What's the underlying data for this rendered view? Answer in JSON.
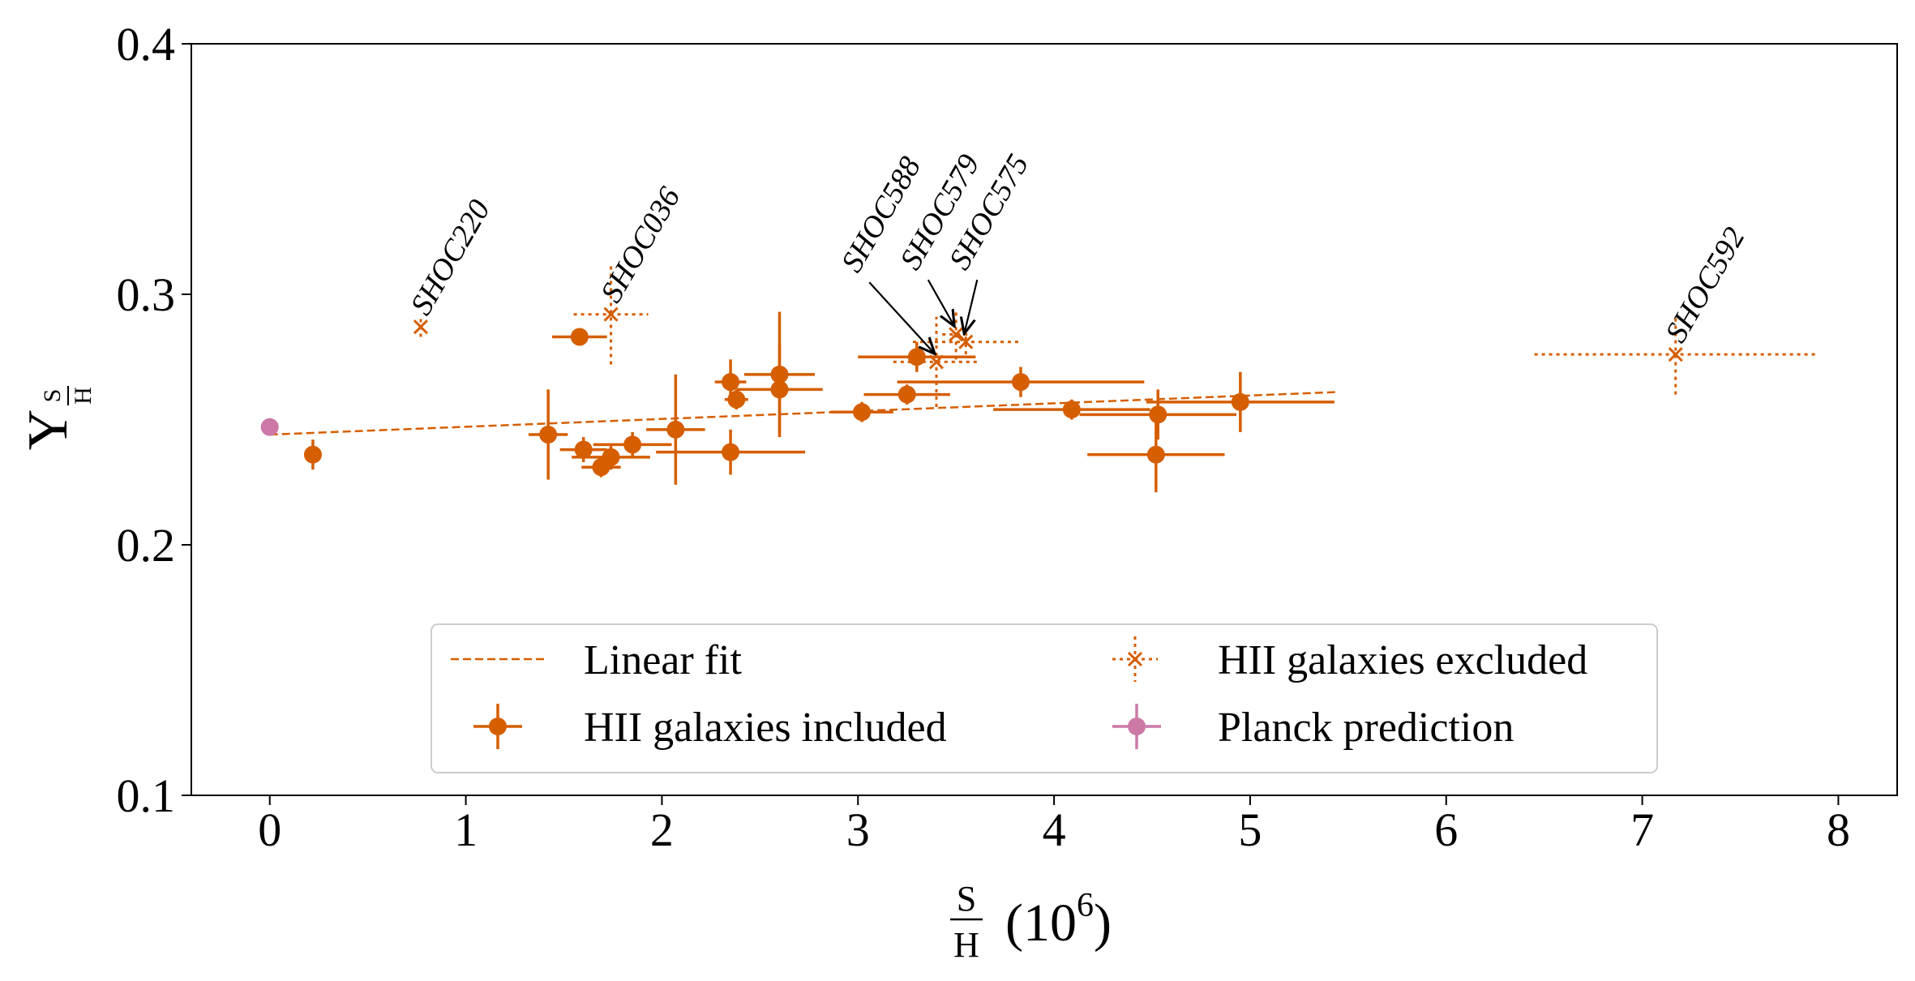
{
  "chart_data": {
    "type": "scatter",
    "title": "",
    "xlabel": {
      "main": "S",
      "sub": "H",
      "suffix": "(10",
      "exp": "6",
      "close": ")"
    },
    "ylabel": {
      "main": "Y",
      "sub_num": "S",
      "sub_den": "H"
    },
    "xlim": [
      -0.4,
      8.3
    ],
    "ylim": [
      0.1,
      0.4
    ],
    "xticks": [
      0,
      1,
      2,
      3,
      4,
      5,
      6,
      7,
      8
    ],
    "xtick_labels": [
      "0",
      "1",
      "2",
      "3",
      "4",
      "5",
      "6",
      "7",
      "8"
    ],
    "yticks": [
      0.1,
      0.2,
      0.3,
      0.4
    ],
    "ytick_labels": [
      "0.1",
      "0.2",
      "0.3",
      "0.4"
    ],
    "grid": false,
    "colors": {
      "orange": "#D55E00",
      "pink": "#CC79A7"
    },
    "linear_fit": {
      "name": "Linear fit",
      "x": [
        0.0,
        5.45
      ],
      "y": [
        0.244,
        0.261
      ]
    },
    "series": [
      {
        "name": "HII galaxies included",
        "marker": "circle",
        "points": [
          {
            "x": 0.22,
            "y": 0.236,
            "xerr": 0.0,
            "yerr": 0.006
          },
          {
            "x": 1.42,
            "y": 0.244,
            "xerr": 0.1,
            "yerr": 0.018
          },
          {
            "x": 1.58,
            "y": 0.283,
            "xerr": 0.14,
            "yerr": 0.0
          },
          {
            "x": 1.6,
            "y": 0.238,
            "xerr": 0.12,
            "yerr": 0.005
          },
          {
            "x": 1.69,
            "y": 0.231,
            "xerr": 0.1,
            "yerr": 0.004
          },
          {
            "x": 1.74,
            "y": 0.235,
            "xerr": 0.2,
            "yerr": 0.005
          },
          {
            "x": 1.85,
            "y": 0.24,
            "xerr": 0.2,
            "yerr": 0.005
          },
          {
            "x": 2.07,
            "y": 0.246,
            "xerr": 0.15,
            "yerr": 0.022
          },
          {
            "x": 2.35,
            "y": 0.237,
            "xerr": 0.38,
            "yerr": 0.009
          },
          {
            "x": 2.35,
            "y": 0.265,
            "xerr": 0.08,
            "yerr": 0.009
          },
          {
            "x": 2.38,
            "y": 0.258,
            "xerr": 0.06,
            "yerr": 0.004
          },
          {
            "x": 2.6,
            "y": 0.268,
            "xerr": 0.18,
            "yerr": 0.025
          },
          {
            "x": 2.6,
            "y": 0.262,
            "xerr": 0.22,
            "yerr": 0.018
          },
          {
            "x": 3.02,
            "y": 0.253,
            "xerr": 0.16,
            "yerr": 0.004
          },
          {
            "x": 3.25,
            "y": 0.26,
            "xerr": 0.22,
            "yerr": 0.004
          },
          {
            "x": 3.3,
            "y": 0.275,
            "xerr": 0.3,
            "yerr": 0.006
          },
          {
            "x": 3.83,
            "y": 0.265,
            "xerr": 0.63,
            "yerr": 0.006
          },
          {
            "x": 4.09,
            "y": 0.254,
            "xerr": 0.4,
            "yerr": 0.004
          },
          {
            "x": 4.52,
            "y": 0.236,
            "xerr": 0.35,
            "yerr": 0.015
          },
          {
            "x": 4.53,
            "y": 0.252,
            "xerr": 0.4,
            "yerr": 0.01
          },
          {
            "x": 4.95,
            "y": 0.257,
            "xerr": 0.48,
            "yerr": 0.012
          }
        ]
      },
      {
        "name": "HII galaxies excluded",
        "marker": "x",
        "points": [
          {
            "x": 0.77,
            "y": 0.287,
            "xerr": 0.0,
            "yerr": 0.004,
            "label": "SHOC220"
          },
          {
            "x": 1.74,
            "y": 0.292,
            "xerr": 0.19,
            "yerr": 0.02,
            "label": "SHOC036"
          },
          {
            "x": 3.4,
            "y": 0.273,
            "xerr": 0.22,
            "yerr": 0.018,
            "label": "SHOC588"
          },
          {
            "x": 3.5,
            "y": 0.284,
            "xerr": 0.07,
            "yerr": 0.01,
            "label": "SHOC579"
          },
          {
            "x": 3.55,
            "y": 0.281,
            "xerr": 0.27,
            "yerr": 0.005,
            "label": "SHOC575"
          },
          {
            "x": 7.17,
            "y": 0.276,
            "xerr": 0.72,
            "yerr": 0.016,
            "label": "SHOC592"
          }
        ]
      },
      {
        "name": "Planck prediction",
        "marker": "circle",
        "points": [
          {
            "x": 0.0,
            "y": 0.247,
            "xerr": 0.0,
            "yerr": 0.0
          }
        ]
      }
    ],
    "legend": {
      "location": "lower center",
      "entries": [
        "Linear fit",
        "HII galaxies excluded",
        "HII galaxies included",
        "Planck prediction"
      ]
    }
  }
}
